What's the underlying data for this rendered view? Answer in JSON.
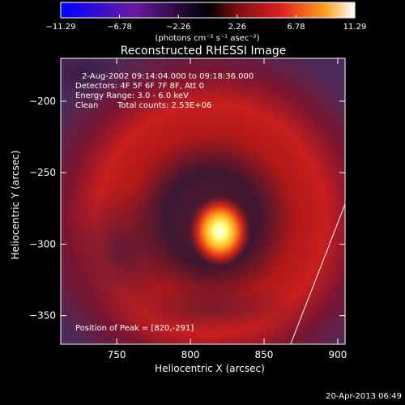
{
  "chart_data": {
    "type": "heatmap",
    "title": "Reconstructed RHESSI Image",
    "xlabel": "Heliocentric X (arcsec)",
    "ylabel": "Heliocentric Y (arcsec)",
    "xlim": [
      712,
      905
    ],
    "ylim": [
      -370,
      -170
    ],
    "x_ticks": [
      750,
      800,
      850,
      900
    ],
    "y_ticks": [
      -200,
      -250,
      -300,
      -350
    ],
    "colorbar": {
      "min": -11.29,
      "max": 11.29,
      "ticks": [
        "-11.29",
        "-6.78",
        "-2.26",
        "2.26",
        "6.78",
        "11.29"
      ],
      "unit_label": "(photons cm⁻² s⁻¹ asec⁻²)"
    },
    "annotations": {
      "time_range": "2-Aug-2002 09:14:04.000 to 09:18:36.000",
      "detectors": "Detectors: 4F 5F 6F 7F 8F, Att 0",
      "energy": "Energy Range: 3.0 - 6.0 keV",
      "method": "Clean",
      "counts": "Total counts: 2.53E+06",
      "peak": "Position of Peak = [820,-291]"
    },
    "peak": {
      "x": 820,
      "y": -291,
      "value": 11.29
    },
    "limb_line": [
      [
        868,
        -370
      ],
      [
        905,
        -272
      ]
    ],
    "footer_date": "20-Apr-2013 06:49"
  }
}
